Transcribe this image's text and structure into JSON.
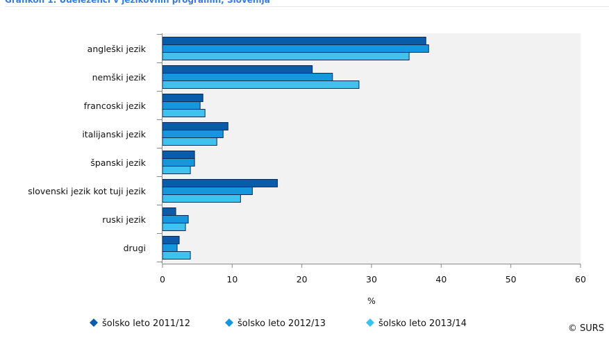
{
  "title": "Grafikon 1. Udeleženci v jezikovnih programih, Slovenija",
  "credits": "© SURS",
  "colors": {
    "plot_bg": "#f2f2f2",
    "axis": "#888888",
    "grid": "#dddddd",
    "bar_stroke": "#0d2a57",
    "title": "#3a7bd5"
  },
  "chart_data": {
    "type": "bar",
    "orientation": "horizontal",
    "categories": [
      "angleški jezik",
      "nemški jezik",
      "francoski jezik",
      "italijanski jezik",
      "španski jezik",
      "slovenski jezik kot tuji jezik",
      "ruski jezik",
      "drugi"
    ],
    "series": [
      {
        "name": "šolsko leto 2011/12",
        "color": "#0b5ca8",
        "values": [
          37.8,
          21.5,
          5.8,
          9.4,
          4.6,
          16.5,
          1.9,
          2.4
        ]
      },
      {
        "name": "šolsko leto 2012/13",
        "color": "#1696dc",
        "values": [
          38.2,
          24.4,
          5.4,
          8.7,
          4.6,
          12.9,
          3.7,
          2.1
        ]
      },
      {
        "name": "šolsko leto 2013/14",
        "color": "#3fc3ee",
        "values": [
          35.4,
          28.2,
          6.1,
          7.8,
          4.0,
          11.2,
          3.3,
          4.0
        ]
      }
    ],
    "xlabel": "%",
    "ylabel": "",
    "xlim": [
      0,
      60
    ],
    "ticks": [
      0,
      10,
      20,
      30,
      40,
      50,
      60
    ],
    "grid": false,
    "legend_position": "bottom"
  }
}
